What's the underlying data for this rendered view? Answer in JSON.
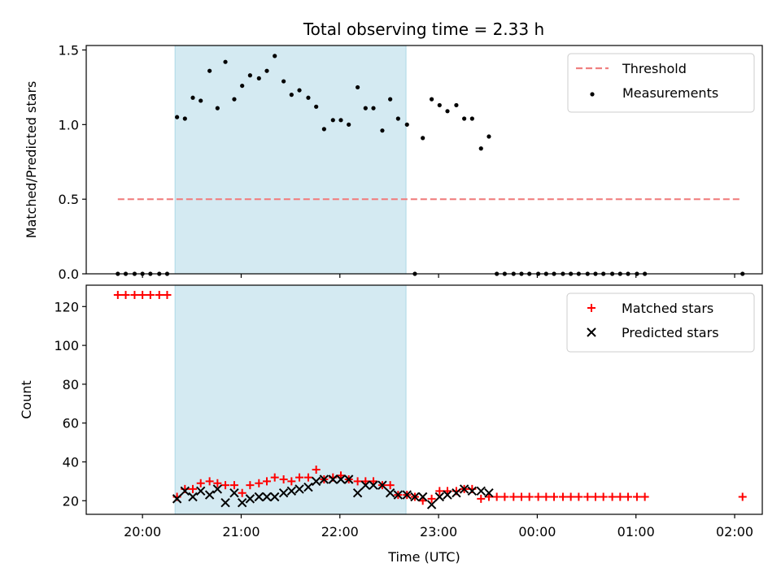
{
  "chart_data": {
    "type": "scatter",
    "title": "Total observing time = 2.33 h",
    "xlabel": "Time (UTC)",
    "x_unit": "hours after 20:00 UTC",
    "x_ticks": [
      0,
      1,
      2,
      3,
      4,
      5,
      6
    ],
    "x_tick_labels": [
      "20:00",
      "21:00",
      "22:00",
      "23:00",
      "00:00",
      "01:00",
      "02:00"
    ],
    "xlim": [
      -0.57,
      6.28
    ],
    "shaded_interval": [
      0.33,
      2.67
    ],
    "shade_color": "#add8e6",
    "panels": [
      {
        "name": "ratio",
        "ylabel": "Matched/Predicted stars",
        "ylim": [
          0,
          1.53
        ],
        "y_ticks": [
          0.0,
          0.5,
          1.0,
          1.5
        ],
        "y_tick_labels": [
          "0.0",
          "0.5",
          "1.0",
          "1.5"
        ],
        "legend_position": "top-right",
        "threshold": {
          "name": "Threshold",
          "value": 0.5,
          "x_range": [
            -0.25,
            6.08
          ],
          "color": "#f08080"
        },
        "series": [
          {
            "name": "Measurements",
            "marker": "dot",
            "color": "#000000",
            "points": [
              [
                -0.25,
                0
              ],
              [
                -0.17,
                0
              ],
              [
                -0.08,
                0
              ],
              [
                0.0,
                0
              ],
              [
                0.08,
                0
              ],
              [
                0.17,
                0
              ],
              [
                0.25,
                0
              ],
              [
                0.35,
                1.05
              ],
              [
                0.43,
                1.04
              ],
              [
                0.51,
                1.18
              ],
              [
                0.59,
                1.16
              ],
              [
                0.68,
                1.36
              ],
              [
                0.76,
                1.11
              ],
              [
                0.84,
                1.42
              ],
              [
                0.93,
                1.17
              ],
              [
                1.01,
                1.26
              ],
              [
                1.09,
                1.33
              ],
              [
                1.18,
                1.31
              ],
              [
                1.26,
                1.36
              ],
              [
                1.34,
                1.46
              ],
              [
                1.43,
                1.29
              ],
              [
                1.51,
                1.2
              ],
              [
                1.59,
                1.23
              ],
              [
                1.68,
                1.18
              ],
              [
                1.76,
                1.12
              ],
              [
                1.84,
                0.97
              ],
              [
                1.93,
                1.03
              ],
              [
                2.01,
                1.03
              ],
              [
                2.09,
                1.0
              ],
              [
                2.18,
                1.25
              ],
              [
                2.26,
                1.11
              ],
              [
                2.34,
                1.11
              ],
              [
                2.43,
                0.96
              ],
              [
                2.51,
                1.17
              ],
              [
                2.59,
                1.04
              ],
              [
                2.68,
                1.0
              ],
              [
                2.76,
                0
              ],
              [
                2.84,
                0.91
              ],
              [
                2.93,
                1.17
              ],
              [
                3.01,
                1.13
              ],
              [
                3.09,
                1.09
              ],
              [
                3.18,
                1.13
              ],
              [
                3.26,
                1.04
              ],
              [
                3.34,
                1.04
              ],
              [
                3.43,
                0.84
              ],
              [
                3.51,
                0.92
              ],
              [
                3.59,
                0
              ],
              [
                3.67,
                0
              ],
              [
                3.76,
                0
              ],
              [
                3.84,
                0
              ],
              [
                3.92,
                0
              ],
              [
                4.01,
                0
              ],
              [
                4.09,
                0
              ],
              [
                4.17,
                0
              ],
              [
                4.26,
                0
              ],
              [
                4.34,
                0
              ],
              [
                4.42,
                0
              ],
              [
                4.51,
                0
              ],
              [
                4.59,
                0
              ],
              [
                4.67,
                0
              ],
              [
                4.76,
                0
              ],
              [
                4.84,
                0
              ],
              [
                4.92,
                0
              ],
              [
                5.01,
                0
              ],
              [
                5.09,
                0
              ],
              [
                6.08,
                0
              ]
            ]
          }
        ]
      },
      {
        "name": "count",
        "ylabel": "Count",
        "ylim": [
          13,
          131
        ],
        "y_ticks": [
          20,
          40,
          60,
          80,
          100,
          120
        ],
        "y_tick_labels": [
          "20",
          "40",
          "60",
          "80",
          "100",
          "120"
        ],
        "legend_position": "top-right",
        "series": [
          {
            "name": "Matched stars",
            "marker": "plus",
            "color": "#ff0000",
            "points": [
              [
                -0.25,
                126
              ],
              [
                -0.17,
                126
              ],
              [
                -0.08,
                126
              ],
              [
                0.0,
                126
              ],
              [
                0.08,
                126
              ],
              [
                0.17,
                126
              ],
              [
                0.25,
                126
              ],
              [
                0.35,
                22
              ],
              [
                0.43,
                26
              ],
              [
                0.51,
                26
              ],
              [
                0.59,
                29
              ],
              [
                0.68,
                30
              ],
              [
                0.76,
                29
              ],
              [
                0.84,
                28
              ],
              [
                0.93,
                28
              ],
              [
                1.01,
                24
              ],
              [
                1.09,
                28
              ],
              [
                1.18,
                29
              ],
              [
                1.26,
                30
              ],
              [
                1.34,
                32
              ],
              [
                1.43,
                31
              ],
              [
                1.51,
                30
              ],
              [
                1.59,
                32
              ],
              [
                1.68,
                32
              ],
              [
                1.76,
                36
              ],
              [
                1.84,
                31
              ],
              [
                1.93,
                32
              ],
              [
                2.01,
                33
              ],
              [
                2.09,
                31
              ],
              [
                2.18,
                30
              ],
              [
                2.26,
                30
              ],
              [
                2.34,
                30
              ],
              [
                2.43,
                28
              ],
              [
                2.51,
                28
              ],
              [
                2.59,
                23
              ],
              [
                2.68,
                23
              ],
              [
                2.76,
                22
              ],
              [
                2.84,
                20
              ],
              [
                2.93,
                21
              ],
              [
                3.01,
                25
              ],
              [
                3.09,
                25
              ],
              [
                3.18,
                25
              ],
              [
                3.26,
                26
              ],
              [
                3.34,
                26
              ],
              [
                3.43,
                21
              ],
              [
                3.51,
                22
              ],
              [
                3.59,
                22
              ],
              [
                3.67,
                22
              ],
              [
                3.76,
                22
              ],
              [
                3.84,
                22
              ],
              [
                3.92,
                22
              ],
              [
                4.01,
                22
              ],
              [
                4.09,
                22
              ],
              [
                4.17,
                22
              ],
              [
                4.26,
                22
              ],
              [
                4.34,
                22
              ],
              [
                4.42,
                22
              ],
              [
                4.51,
                22
              ],
              [
                4.59,
                22
              ],
              [
                4.67,
                22
              ],
              [
                4.76,
                22
              ],
              [
                4.84,
                22
              ],
              [
                4.92,
                22
              ],
              [
                5.01,
                22
              ],
              [
                5.09,
                22
              ],
              [
                6.08,
                22
              ]
            ]
          },
          {
            "name": "Predicted stars",
            "marker": "x",
            "color": "#000000",
            "points": [
              [
                0.35,
                21
              ],
              [
                0.43,
                25
              ],
              [
                0.51,
                22
              ],
              [
                0.59,
                25
              ],
              [
                0.68,
                23
              ],
              [
                0.76,
                26
              ],
              [
                0.84,
                19
              ],
              [
                0.93,
                24
              ],
              [
                1.01,
                19
              ],
              [
                1.09,
                21
              ],
              [
                1.18,
                22
              ],
              [
                1.26,
                22
              ],
              [
                1.34,
                22
              ],
              [
                1.43,
                24
              ],
              [
                1.51,
                25
              ],
              [
                1.59,
                26
              ],
              [
                1.68,
                27
              ],
              [
                1.76,
                30
              ],
              [
                1.84,
                31
              ],
              [
                1.93,
                31
              ],
              [
                2.01,
                31
              ],
              [
                2.09,
                31
              ],
              [
                2.18,
                24
              ],
              [
                2.26,
                28
              ],
              [
                2.34,
                28
              ],
              [
                2.43,
                28
              ],
              [
                2.51,
                24
              ],
              [
                2.59,
                23
              ],
              [
                2.68,
                23
              ],
              [
                2.76,
                22
              ],
              [
                2.84,
                22
              ],
              [
                2.93,
                18
              ],
              [
                3.01,
                22
              ],
              [
                3.09,
                23
              ],
              [
                3.18,
                24
              ],
              [
                3.26,
                26
              ],
              [
                3.34,
                25
              ],
              [
                3.43,
                25
              ],
              [
                3.51,
                24
              ]
            ]
          }
        ]
      }
    ]
  }
}
